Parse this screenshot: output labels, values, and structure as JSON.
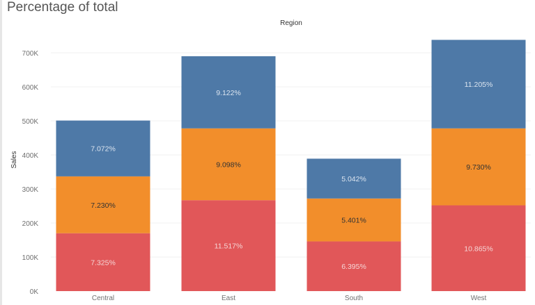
{
  "title": "Percentage of total",
  "chart_data": {
    "type": "bar",
    "stacked": true,
    "title": "Percentage of total",
    "header_label": "Region",
    "ylabel": "Sales",
    "xlabel": "",
    "categories": [
      "Central",
      "East",
      "South",
      "West"
    ],
    "ylim": [
      0,
      700000
    ],
    "yticks": [
      0,
      100000,
      200000,
      300000,
      400000,
      500000,
      600000,
      700000
    ],
    "ytick_labels": [
      "0K",
      "100K",
      "200K",
      "300K",
      "400K",
      "500K",
      "600K",
      "700K"
    ],
    "grid": true,
    "legend": "none",
    "series": [
      {
        "color": "#e15759",
        "label_color": "#f5d6d6",
        "values": [
          170000,
          267000,
          146000,
          252000
        ],
        "labels": [
          "7.325%",
          "11.517%",
          "6.395%",
          "10.865%"
        ]
      },
      {
        "color": "#f28e2b",
        "label_color": "#333333",
        "values": [
          167000,
          211000,
          126000,
          226000
        ],
        "labels": [
          "7.230%",
          "9.098%",
          "5.401%",
          "9.730%"
        ]
      },
      {
        "color": "#4e79a7",
        "label_color": "#dbe4ef",
        "values": [
          164000,
          212000,
          117000,
          260000
        ],
        "labels": [
          "7.072%",
          "9.122%",
          "5.042%",
          "11.205%"
        ]
      }
    ]
  }
}
